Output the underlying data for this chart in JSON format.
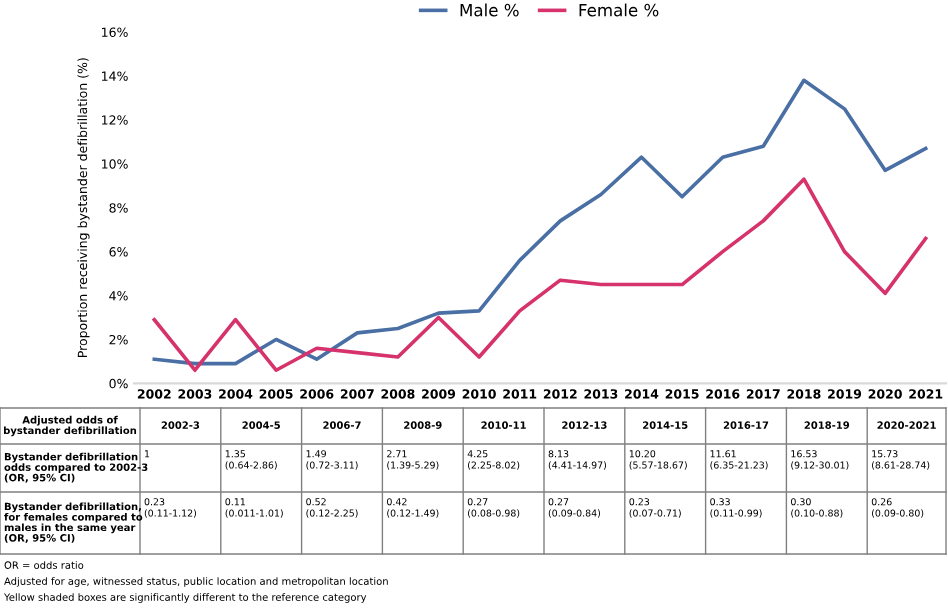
{
  "chart_data": {
    "type": "line",
    "ylabel": "Proportion receiving bystander defibrillation (%)",
    "categories": [
      "2002",
      "2003",
      "2004",
      "2005",
      "2006",
      "2007",
      "2008",
      "2009",
      "2010",
      "2011",
      "2012",
      "2013",
      "2014",
      "2015",
      "2016",
      "2017",
      "2018",
      "2019",
      "2020",
      "2021"
    ],
    "series": [
      {
        "name": "Male %",
        "color": "#4a6fa5",
        "values": [
          1.1,
          0.9,
          0.9,
          2.0,
          1.1,
          2.3,
          2.5,
          3.2,
          3.3,
          5.6,
          7.4,
          8.6,
          10.3,
          8.5,
          10.3,
          10.8,
          13.8,
          12.5,
          9.7,
          10.7
        ]
      },
      {
        "name": "Female %",
        "color": "#d6336c",
        "values": [
          2.9,
          0.6,
          2.9,
          0.6,
          1.6,
          1.4,
          1.2,
          3.0,
          1.2,
          3.3,
          4.7,
          4.5,
          4.5,
          4.5,
          6.0,
          7.4,
          9.3,
          6.0,
          4.1,
          6.6
        ]
      }
    ],
    "ylim": [
      0,
      16
    ],
    "yticks": [
      {
        "value": 0,
        "label": "0%"
      },
      {
        "value": 2,
        "label": "2%"
      },
      {
        "value": 4,
        "label": "4%"
      },
      {
        "value": 6,
        "label": "6%"
      },
      {
        "value": 8,
        "label": "8%"
      },
      {
        "value": 10,
        "label": "10%"
      },
      {
        "value": 12,
        "label": "12%"
      },
      {
        "value": 14,
        "label": "14%"
      },
      {
        "value": 16,
        "label": "16%"
      }
    ],
    "grid": false,
    "legend": "top",
    "marker": "none",
    "line_style": "solid",
    "annotations": [
      "Adjusted odds of\nbystander defibrillation",
      "2002-3",
      "2004-5",
      "2006-7",
      "2008-9",
      "2010-11",
      "2012-13",
      "2014-15",
      "2016-17",
      "2018-19",
      "2020-2021",
      "Bystander defibrillation\nodds compared to 2002-3\n(OR, 95% CI)",
      "1",
      "1.35\n(0.64-2.86)",
      "1.49\n(0.72-3.11)",
      "2.71\n(1.39-5.29)",
      "4.25\n(2.25-8.02)",
      "8.13\n(4.41-14.97)",
      "10.20\n(5.57-18.67)",
      "11.61\n(6.35-21.23)",
      "16.53\n(9.12-30.01)",
      "15.73\n(8.61-28.74)",
      "Bystander defibrillation,\nfor females compared to\nmales in the same year\n(OR, 95% CI)",
      "0.23\n(0.11-1.12)",
      "0.11\n(0.011-1.01)",
      "0.52\n(0.12-2.25)",
      "0.42\n(0.12-1.49)",
      "0.27\n(0.08-0.98)",
      "0.27\n(0.09-0.84)",
      "0.23\n(0.07-0.71)",
      "0.33\n(0.11-0.99)",
      "0.30\n(0.10-0.88)",
      "0.26\n(0.09-0.80)",
      "OR = odds ratio",
      "Adjusted for age, witnessed status, public location and metropolitan location",
      "Yellow shaded boxes are significantly different to the reference category"
    ]
  }
}
